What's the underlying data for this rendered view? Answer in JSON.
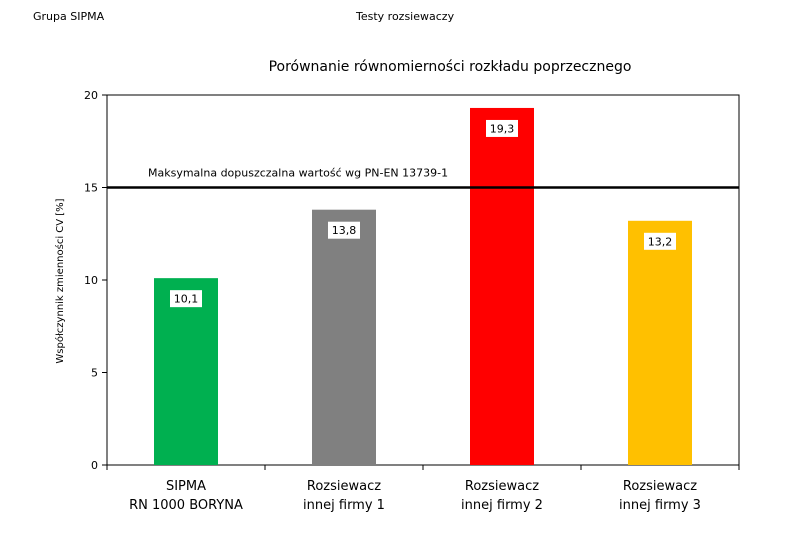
{
  "header": {
    "left": "Grupa SIPMA",
    "center": "Testy rozsiewaczy"
  },
  "chart_data": {
    "type": "bar",
    "title": "Porównanie równomierności rozkładu poprzecznego",
    "ylabel": "Współczynnik zmienności CV [%]",
    "xlabel": "",
    "ylim": [
      0,
      20
    ],
    "yticks": [
      0,
      5,
      10,
      15,
      20
    ],
    "grid": false,
    "categories": [
      [
        "SIPMA",
        "RN 1000 BORYNA"
      ],
      [
        "Rozsiewacz",
        "innej firmy 1"
      ],
      [
        "Rozsiewacz",
        "innej firmy 2"
      ],
      [
        "Rozsiewacz",
        "innej firmy 3"
      ]
    ],
    "values": [
      10.1,
      13.8,
      19.3,
      13.2
    ],
    "value_labels": [
      "10,1",
      "13,8",
      "19,3",
      "13,2"
    ],
    "colors": [
      "#00b050",
      "#808080",
      "#ff0000",
      "#ffc000"
    ],
    "reference_line": {
      "value": 15,
      "label": "Maksymalna dopuszczalna wartość wg PN-EN 13739-1",
      "color": "#000000"
    }
  }
}
